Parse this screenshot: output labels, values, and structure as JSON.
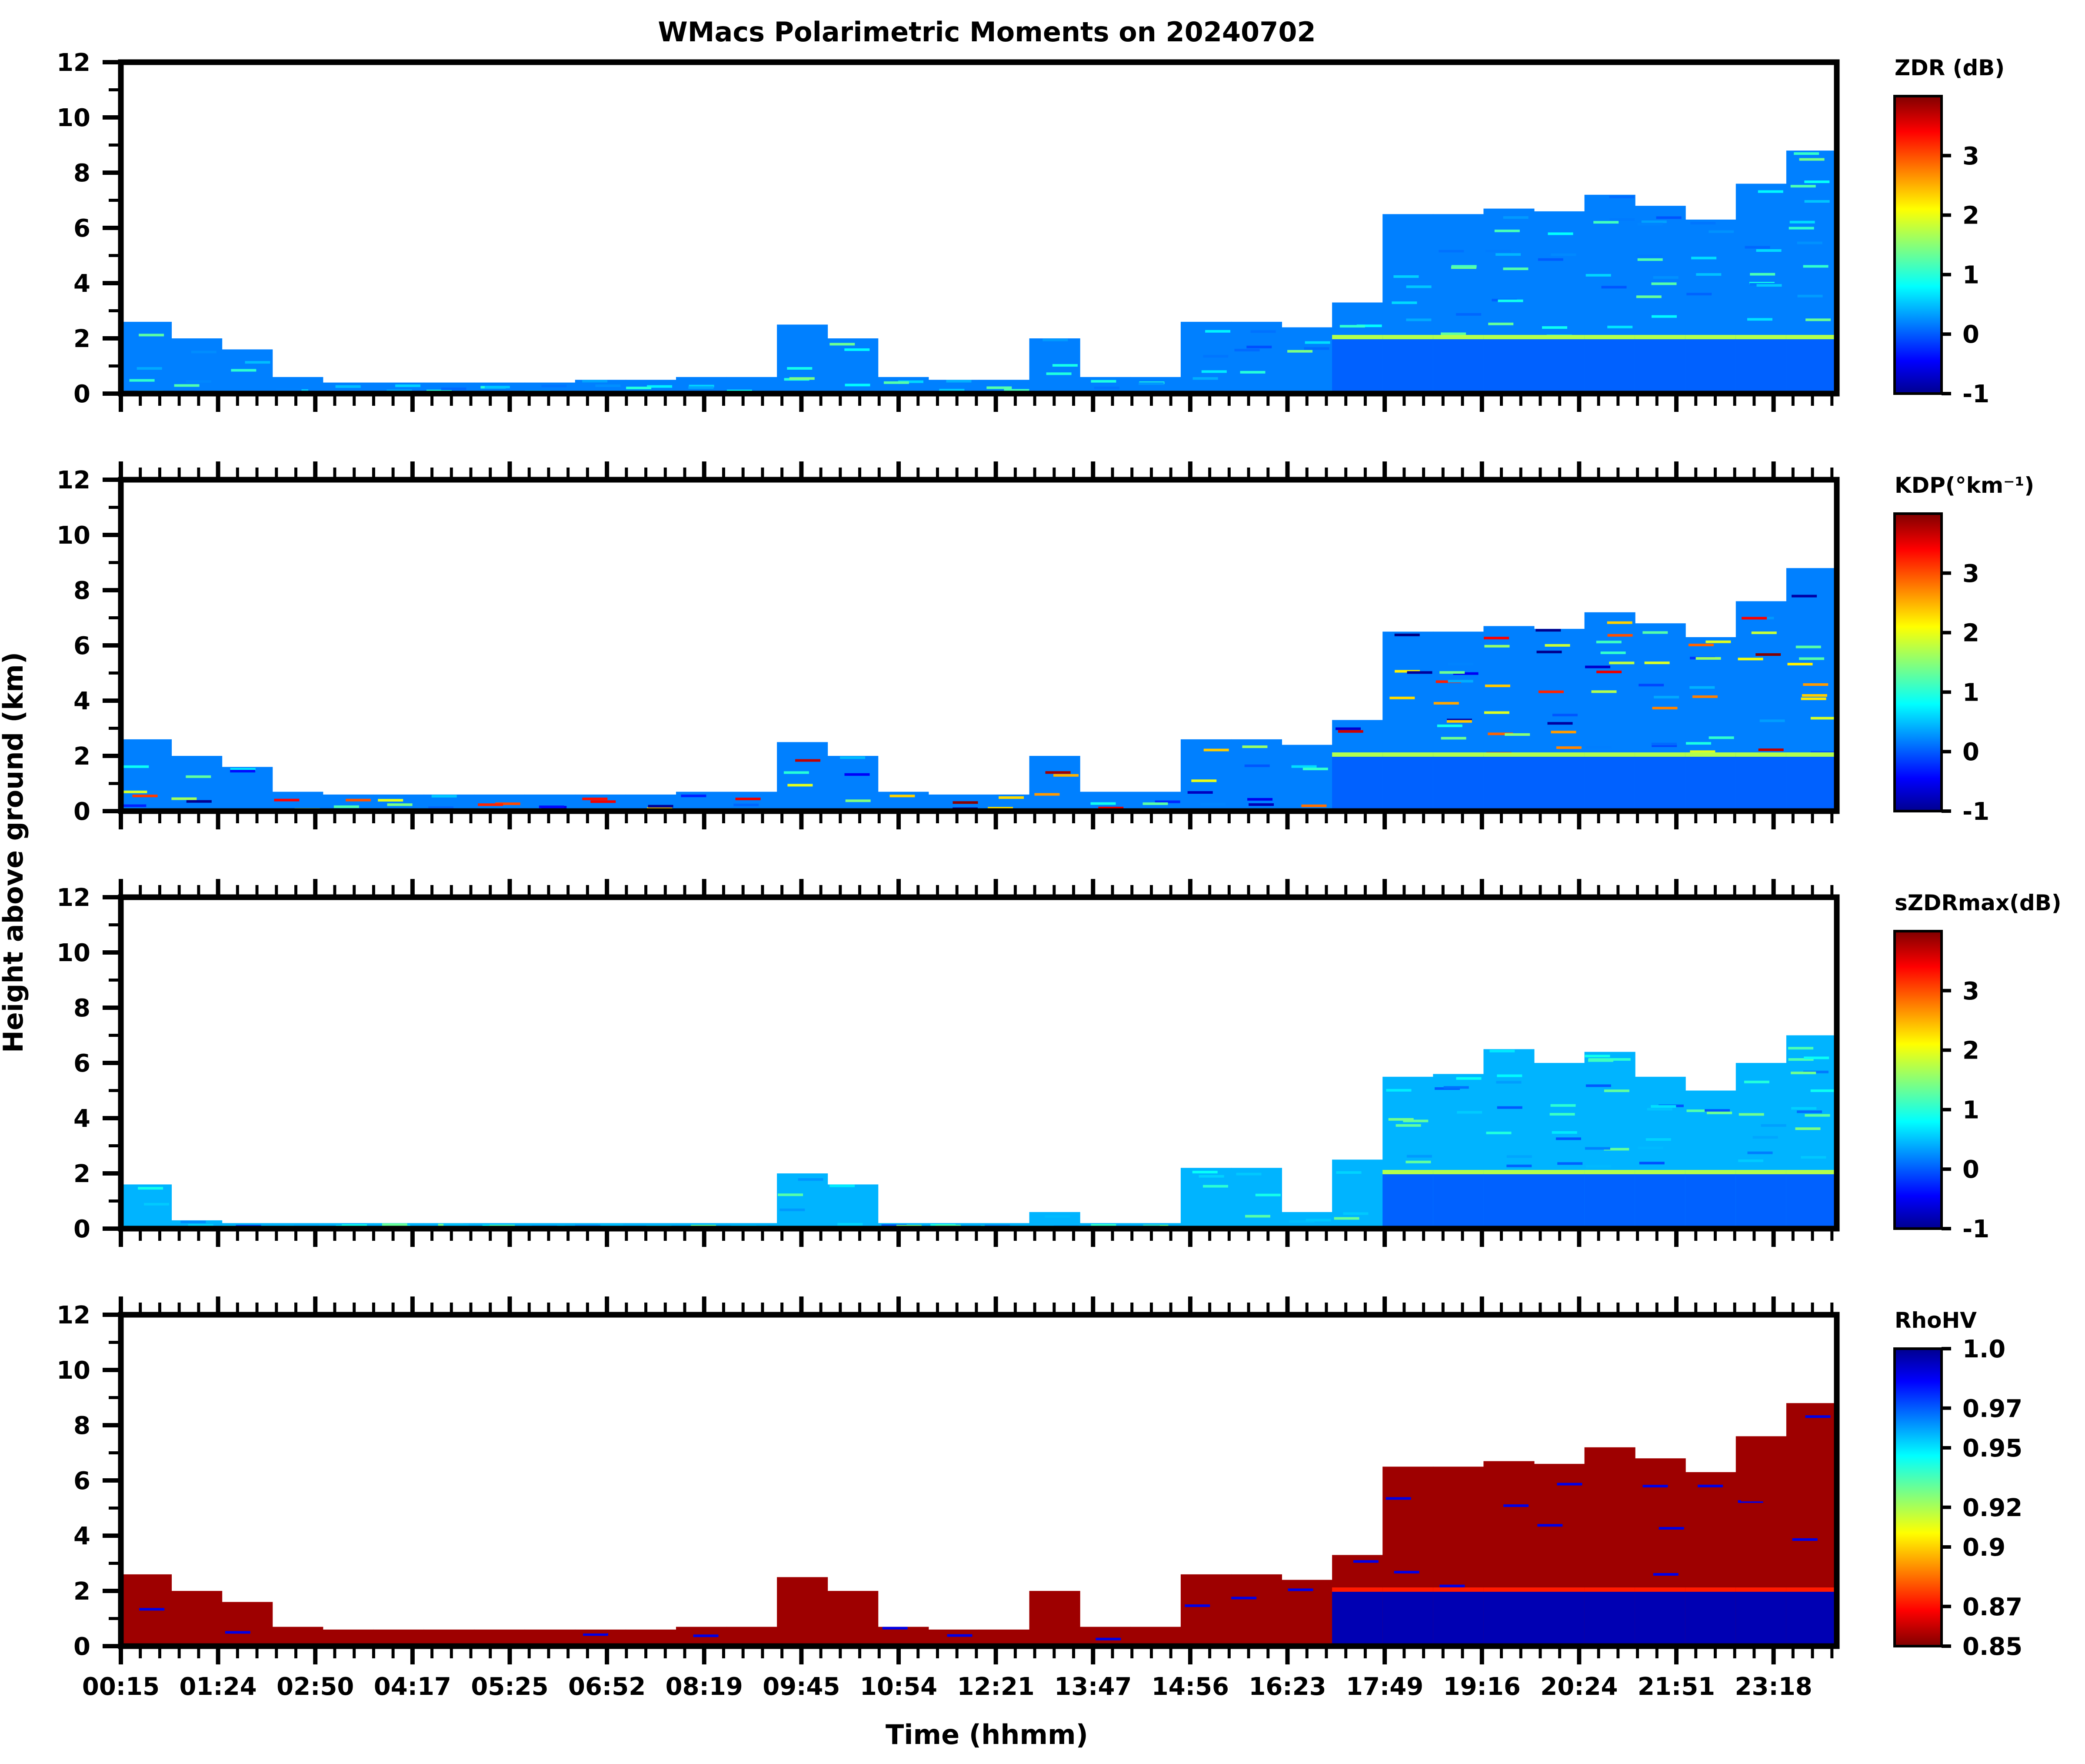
{
  "chart_data": {
    "type": "heatmap",
    "title": "WMacs Polarimetric Moments on 20240702",
    "xlabel": "Time (hhmm)",
    "ylabel": "Height above ground (km)",
    "x_tick_labels": [
      "00:15",
      "01:24",
      "02:50",
      "04:17",
      "05:25",
      "06:52",
      "08:19",
      "09:45",
      "10:54",
      "12:21",
      "13:47",
      "14:56",
      "16:23",
      "17:49",
      "19:16",
      "20:24",
      "21:51",
      "23:18"
    ],
    "y_ticks": [
      0,
      2,
      4,
      6,
      8,
      10,
      12
    ],
    "y_tick_labels": [
      "0",
      "2",
      "4",
      "6",
      "8",
      "10",
      "12"
    ],
    "ylim": [
      0,
      12
    ],
    "colormap": "jet",
    "panels": [
      {
        "name": "ZDR",
        "colorbar_label": "ZDR (dB)",
        "colorbar_range": [
          -1,
          4
        ],
        "colorbar_ticks": [
          -1,
          0,
          1,
          2,
          3
        ],
        "colorbar_tick_labels": [
          "-1",
          "0",
          "1",
          "2",
          "3"
        ],
        "reversed": false,
        "echo_top_km": [
          2.6,
          2.0,
          1.6,
          0.6,
          0.4,
          0.4,
          0.4,
          0.4,
          0.4,
          0.5,
          0.5,
          0.6,
          0.6,
          2.5,
          2.0,
          0.6,
          0.5,
          0.5,
          2.0,
          0.6,
          0.6,
          2.6,
          2.6,
          2.4,
          3.3,
          6.5,
          6.5,
          6.7,
          6.6,
          7.2,
          6.8,
          6.3,
          7.6,
          8.8
        ],
        "typical_value": 0,
        "melting_layer_km": 2.0
      },
      {
        "name": "KDP",
        "colorbar_label": "KDP(°km⁻¹)",
        "colorbar_range": [
          -1,
          4
        ],
        "colorbar_ticks": [
          -1,
          0,
          1,
          2,
          3
        ],
        "colorbar_tick_labels": [
          "-1",
          "0",
          "1",
          "2",
          "3"
        ],
        "reversed": false,
        "echo_top_km": [
          2.6,
          2.0,
          1.6,
          0.7,
          0.6,
          0.6,
          0.6,
          0.6,
          0.6,
          0.6,
          0.6,
          0.7,
          0.7,
          2.5,
          2.0,
          0.7,
          0.6,
          0.6,
          2.0,
          0.7,
          0.7,
          2.6,
          2.6,
          2.4,
          3.3,
          6.5,
          6.5,
          6.7,
          6.6,
          7.2,
          6.8,
          6.3,
          7.6,
          8.8
        ],
        "typical_value": 0,
        "melting_layer_km": 2.0
      },
      {
        "name": "sZDRmax",
        "colorbar_label": "sZDRmax(dB)",
        "colorbar_range": [
          -1,
          4
        ],
        "colorbar_ticks": [
          -1,
          0,
          1,
          2,
          3
        ],
        "colorbar_tick_labels": [
          "-1",
          "0",
          "1",
          "2",
          "3"
        ],
        "reversed": false,
        "echo_top_km": [
          1.6,
          0.3,
          0.2,
          0.2,
          0.2,
          0.2,
          0.2,
          0.2,
          0.2,
          0.2,
          0.2,
          0.2,
          0.2,
          2.0,
          1.6,
          0.2,
          0.2,
          0.2,
          0.6,
          0.2,
          0.2,
          2.2,
          2.2,
          0.6,
          2.5,
          5.5,
          5.6,
          6.5,
          6.0,
          6.4,
          5.5,
          5.0,
          6.0,
          7.0
        ],
        "typical_value": 0.3,
        "melting_layer_km": 2.0
      },
      {
        "name": "RhoHV",
        "colorbar_label": "RhoHV",
        "colorbar_range": [
          0.85,
          1.0
        ],
        "colorbar_ticks": [
          0.85,
          0.87,
          0.9,
          0.92,
          0.95,
          0.97,
          1.0
        ],
        "colorbar_tick_labels": [
          "0.85",
          "0.87",
          "0.9",
          "0.92",
          "0.95",
          "0.97",
          "1.0"
        ],
        "reversed": true,
        "echo_top_km": [
          2.6,
          2.0,
          1.6,
          0.7,
          0.6,
          0.6,
          0.6,
          0.6,
          0.6,
          0.6,
          0.6,
          0.7,
          0.7,
          2.5,
          2.0,
          0.7,
          0.6,
          0.6,
          2.0,
          0.7,
          0.7,
          2.6,
          2.6,
          2.4,
          3.3,
          6.5,
          6.5,
          6.7,
          6.6,
          7.2,
          6.8,
          6.3,
          7.6,
          8.8
        ],
        "typical_value": 0.85,
        "melting_layer_km": 2.0
      }
    ]
  }
}
